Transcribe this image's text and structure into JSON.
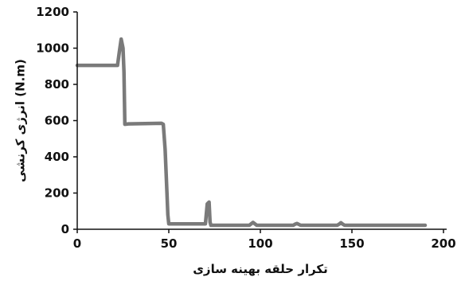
{
  "chart_data": {
    "type": "line",
    "title": "",
    "xlabel": "تکرار حلقه بهینه سازی",
    "ylabel": "انرژی کرنشی (N.m)",
    "xlim": [
      0,
      200
    ],
    "ylim": [
      0,
      1200
    ],
    "x_ticks": [
      "0",
      "50",
      "100",
      "150",
      "200"
    ],
    "y_ticks": [
      "0",
      "200",
      "400",
      "600",
      "800",
      "1000",
      "1200"
    ],
    "grid": false,
    "legend": "none",
    "line_color": "#7a7a7a",
    "series": [
      {
        "x": [
          0,
          22,
          23,
          24,
          25,
          25.5,
          26,
          28,
          46,
          47,
          48,
          49,
          49.5,
          50,
          52,
          70,
          71,
          72,
          72.5,
          73,
          75,
          94,
          95,
          96,
          97,
          98,
          118,
          119,
          120,
          121,
          122,
          142,
          143,
          144,
          145,
          146,
          190
        ],
        "y": [
          905,
          905,
          980,
          1050,
          1000,
          870,
          580,
          582,
          585,
          580,
          440,
          200,
          80,
          30,
          30,
          30,
          140,
          150,
          40,
          22,
          22,
          22,
          30,
          38,
          30,
          22,
          22,
          28,
          32,
          27,
          22,
          22,
          28,
          36,
          28,
          22,
          22
        ]
      }
    ]
  }
}
